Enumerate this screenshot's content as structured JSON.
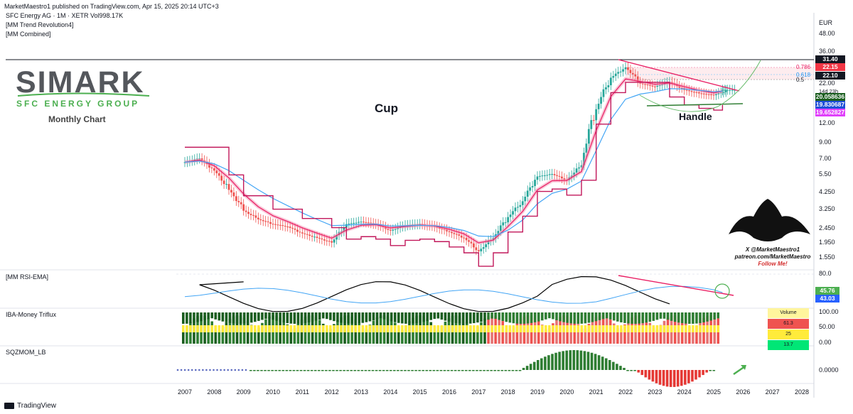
{
  "header": {
    "publisher_line": "MarketMaestro1 published on TradingView.com, Apr 15, 2025 20:14 UTC+3",
    "symbol_line": "SFC Energy AG · 1M · XETR  Vol998.17K",
    "indicator_1": "[MM Trend Revolution4]",
    "indicator_2": "[MM Combined]",
    "currency": "EUR"
  },
  "logo": {
    "title": "SIMARK",
    "subtitle": "SFC ENERGY GROUP",
    "note": "Monthly Chart"
  },
  "annotations": {
    "cup": "Cup",
    "handle": "Handle",
    "watermark_1": "X @MarketMaestro1",
    "watermark_2": "patreon.com/MarketMaestro",
    "watermark_3": "Follow Me!"
  },
  "footer": {
    "brand": "TradingView"
  },
  "colors": {
    "price_up": "#26a69a",
    "price_down": "#ef5350",
    "trend_line": "#e91e63",
    "ema_blue": "#42a5f5",
    "green_line": "#2e7d32",
    "rsi_line": "#000000",
    "rsi_ema": "#42a5f5",
    "mom_up": "#2e7d32",
    "mom_down": "#e53935"
  },
  "chart_data": {
    "type": "line",
    "panes": [
      {
        "name": "price",
        "scale": "log",
        "y_tick_labels": [
          "48.00",
          "36.00",
          "22.00",
          "14d 23h",
          "12.00",
          "9.00",
          "7.00",
          "5.50",
          "4.250",
          "3.250",
          "2.450",
          "1.950",
          "1.550"
        ],
        "price_labels": [
          {
            "value": "31.40",
            "color": "#131722"
          },
          {
            "value": "22.15",
            "color": "#f23645"
          },
          {
            "value": "22.10",
            "color": "#131722"
          },
          {
            "value": "20.058636",
            "color": "#1b5e20"
          },
          {
            "value": "19.830687",
            "color": "#1e4fd8"
          },
          {
            "value": "19.652827",
            "color": "#e040fb"
          }
        ],
        "fib_labels": [
          "0.786",
          "0.618",
          "0.5"
        ],
        "x_years": [
          "2007",
          "2008",
          "2009",
          "2010",
          "2011",
          "2012",
          "2013",
          "2014",
          "2015",
          "2016",
          "2017",
          "2018",
          "2019",
          "2020",
          "2021",
          "2022",
          "2023",
          "2024",
          "2025",
          "2026",
          "2027",
          "2028"
        ],
        "close_series": [
          {
            "x": "2007.0",
            "y": 6.8
          },
          {
            "x": "2007.5",
            "y": 7.2
          },
          {
            "x": "2008.0",
            "y": 6.0
          },
          {
            "x": "2008.5",
            "y": 4.5
          },
          {
            "x": "2009.0",
            "y": 3.3
          },
          {
            "x": "2009.5",
            "y": 2.9
          },
          {
            "x": "2010.0",
            "y": 2.7
          },
          {
            "x": "2010.5",
            "y": 2.6
          },
          {
            "x": "2011.0",
            "y": 2.35
          },
          {
            "x": "2011.5",
            "y": 2.2
          },
          {
            "x": "2012.0",
            "y": 2.05
          },
          {
            "x": "2012.5",
            "y": 2.7
          },
          {
            "x": "2013.0",
            "y": 2.8
          },
          {
            "x": "2013.5",
            "y": 2.7
          },
          {
            "x": "2014.0",
            "y": 2.45
          },
          {
            "x": "2014.5",
            "y": 2.65
          },
          {
            "x": "2015.0",
            "y": 2.7
          },
          {
            "x": "2015.5",
            "y": 2.6
          },
          {
            "x": "2016.0",
            "y": 2.4
          },
          {
            "x": "2016.5",
            "y": 2.2
          },
          {
            "x": "2017.0",
            "y": 1.8
          },
          {
            "x": "2017.5",
            "y": 2.2
          },
          {
            "x": "2018.0",
            "y": 3.0
          },
          {
            "x": "2018.5",
            "y": 3.8
          },
          {
            "x": "2019.0",
            "y": 5.5
          },
          {
            "x": "2019.5",
            "y": 5.7
          },
          {
            "x": "2020.0",
            "y": 5.2
          },
          {
            "x": "2020.5",
            "y": 6.5
          },
          {
            "x": "2021.0",
            "y": 15.0
          },
          {
            "x": "2021.5",
            "y": 24.0
          },
          {
            "x": "2022.0",
            "y": 28.0
          },
          {
            "x": "2022.5",
            "y": 22.0
          },
          {
            "x": "2023.0",
            "y": 21.0
          },
          {
            "x": "2023.5",
            "y": 22.5
          },
          {
            "x": "2024.0",
            "y": 20.0
          },
          {
            "x": "2024.5",
            "y": 19.0
          },
          {
            "x": "2025.0",
            "y": 18.5
          },
          {
            "x": "2025.3",
            "y": 20.0
          }
        ]
      },
      {
        "name": "[MM RSI-EMA]",
        "y_tick_labels": [
          "80.0"
        ],
        "value_labels": [
          {
            "value": "45.76",
            "color": "#4caf50"
          },
          {
            "value": "43.03",
            "color": "#2962ff"
          }
        ]
      },
      {
        "name": "IBA-Money Triflux",
        "y_tick_labels": [
          "100.00",
          "50.00",
          "0.00"
        ],
        "volume_table": [
          {
            "label": "Volume",
            "color": "#fff59d"
          },
          {
            "label": "61.3",
            "color": "#ef5350"
          },
          {
            "label": "25",
            "color": "#ffeb3b"
          },
          {
            "label": "13.7",
            "color": "#00e676"
          }
        ]
      },
      {
        "name": "SQZMOM_LB",
        "y_tick_labels": [
          "0.0000"
        ]
      }
    ]
  }
}
